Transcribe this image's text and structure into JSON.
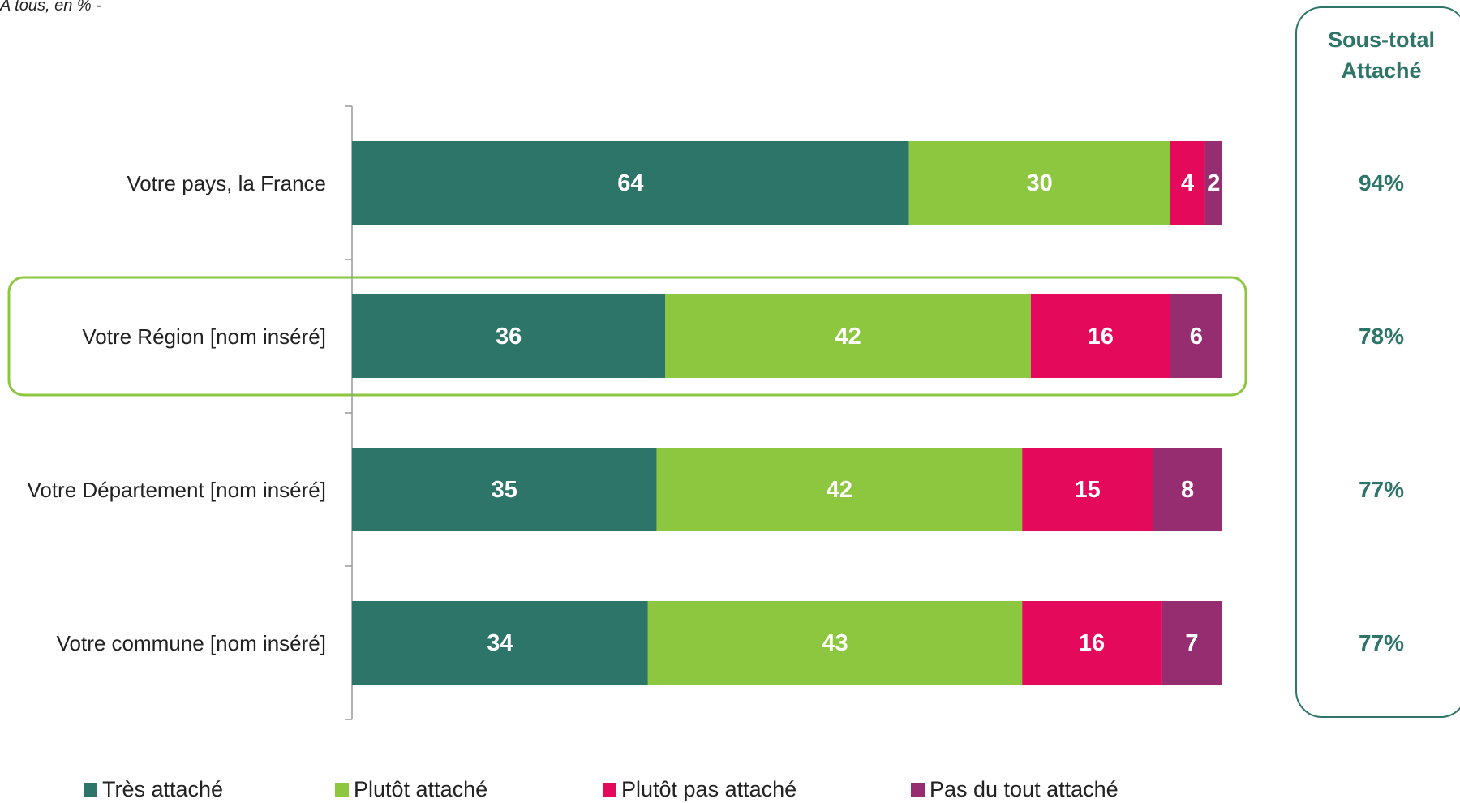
{
  "note": "A tous, en % -",
  "chart_data": {
    "type": "stacked-barh",
    "categories": [
      "Votre pays, la France",
      "Votre Région [nom inséré]",
      "Votre Département  [nom inséré]",
      "Votre commune  [nom inséré]"
    ],
    "series": [
      {
        "name": "Très attaché",
        "color": "#2e7569",
        "values": [
          64,
          36,
          35,
          34
        ]
      },
      {
        "name": "Plutôt attaché",
        "color": "#8dc63f",
        "values": [
          30,
          42,
          42,
          43
        ]
      },
      {
        "name": "Plutôt pas attaché",
        "color": "#e4095a",
        "values": [
          4,
          16,
          15,
          16
        ]
      },
      {
        "name": "Pas du tout attaché",
        "color": "#962d71",
        "values": [
          2,
          6,
          8,
          7
        ]
      }
    ],
    "subtotal": {
      "title": "Sous-total Attaché",
      "values": [
        94,
        78,
        77,
        77
      ],
      "value_labels": [
        "94%",
        "78%",
        "77%",
        "77%"
      ],
      "color": "#2e7569"
    }
  }
}
